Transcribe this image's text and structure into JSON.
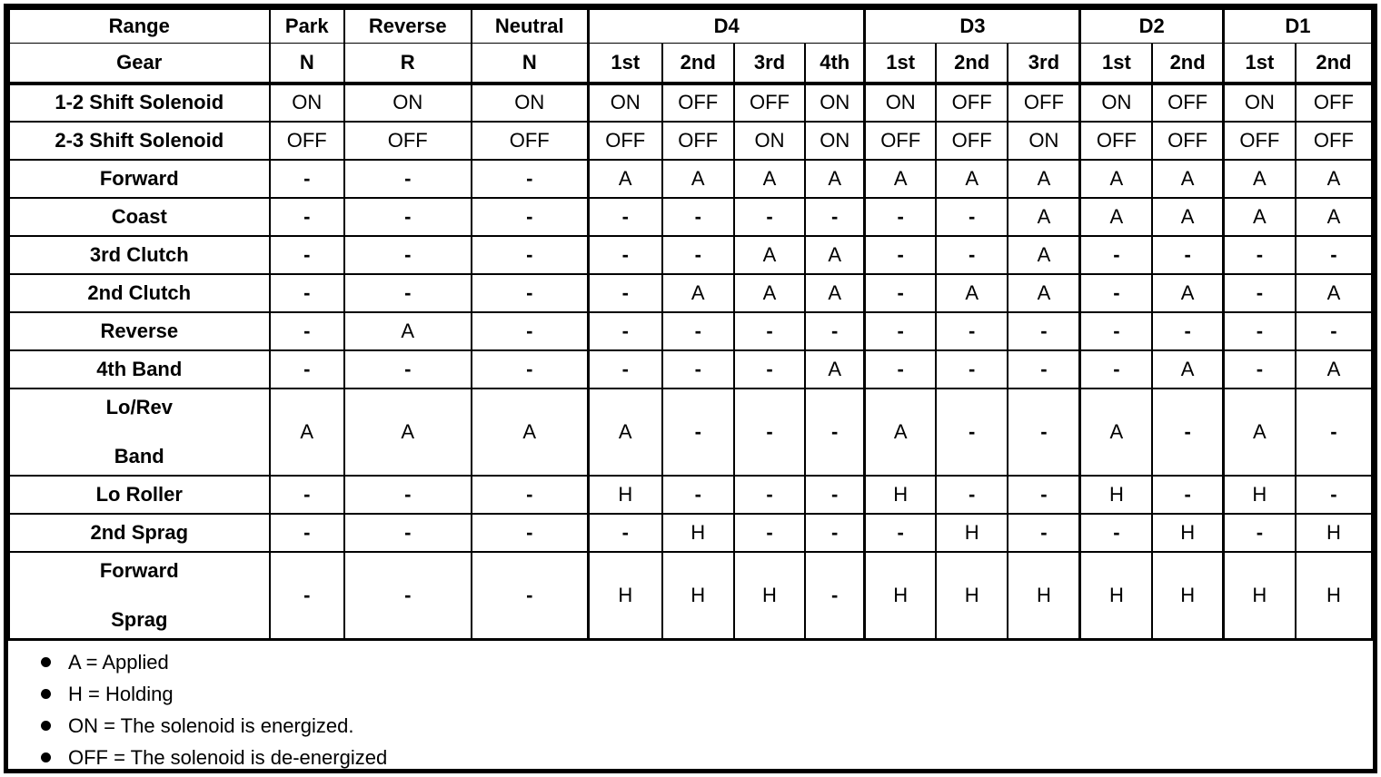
{
  "header": {
    "range_label": "Range",
    "gear_label": "Gear",
    "ranges": [
      {
        "label": "Park",
        "gears": [
          "N"
        ]
      },
      {
        "label": "Reverse",
        "gears": [
          "R"
        ]
      },
      {
        "label": "Neutral",
        "gears": [
          "N"
        ]
      },
      {
        "label": "D4",
        "gears": [
          "1st",
          "2nd",
          "3rd",
          "4th"
        ]
      },
      {
        "label": "D3",
        "gears": [
          "1st",
          "2nd",
          "3rd"
        ]
      },
      {
        "label": "D2",
        "gears": [
          "1st",
          "2nd"
        ]
      },
      {
        "label": "D1",
        "gears": [
          "1st",
          "2nd"
        ]
      }
    ]
  },
  "rows": [
    {
      "label_lines": [
        "1-2 Shift Solenoid"
      ],
      "values": [
        "ON",
        "ON",
        "ON",
        "ON",
        "OFF",
        "OFF",
        "ON",
        "ON",
        "OFF",
        "OFF",
        "ON",
        "OFF",
        "ON",
        "OFF"
      ]
    },
    {
      "label_lines": [
        "2-3 Shift Solenoid"
      ],
      "values": [
        "OFF",
        "OFF",
        "OFF",
        "OFF",
        "OFF",
        "ON",
        "ON",
        "OFF",
        "OFF",
        "ON",
        "OFF",
        "OFF",
        "OFF",
        "OFF"
      ]
    },
    {
      "label_lines": [
        "Forward"
      ],
      "values": [
        "-",
        "-",
        "-",
        "A",
        "A",
        "A",
        "A",
        "A",
        "A",
        "A",
        "A",
        "A",
        "A",
        "A"
      ]
    },
    {
      "label_lines": [
        "Coast"
      ],
      "values": [
        "-",
        "-",
        "-",
        "-",
        "-",
        "-",
        "-",
        "-",
        "-",
        "A",
        "A",
        "A",
        "A",
        "A"
      ]
    },
    {
      "label_lines": [
        "3rd Clutch"
      ],
      "values": [
        "-",
        "-",
        "-",
        "-",
        "-",
        "A",
        "A",
        "-",
        "-",
        "A",
        "-",
        "-",
        "-",
        "-"
      ]
    },
    {
      "label_lines": [
        "2nd Clutch"
      ],
      "values": [
        "-",
        "-",
        "-",
        "-",
        "A",
        "A",
        "A",
        "-",
        "A",
        "A",
        "-",
        "A",
        "-",
        "A"
      ]
    },
    {
      "label_lines": [
        "Reverse"
      ],
      "values": [
        "-",
        "A",
        "-",
        "-",
        "-",
        "-",
        "-",
        "-",
        "-",
        "-",
        "-",
        "-",
        "-",
        "-"
      ]
    },
    {
      "label_lines": [
        "4th Band"
      ],
      "values": [
        "-",
        "-",
        "-",
        "-",
        "-",
        "-",
        "A",
        "-",
        "-",
        "-",
        "-",
        "A",
        "-",
        "A"
      ]
    },
    {
      "label_lines": [
        "Lo/Rev",
        "Band"
      ],
      "values": [
        "A",
        "A",
        "A",
        "A",
        "-",
        "-",
        "-",
        "A",
        "-",
        "-",
        "A",
        "-",
        "A",
        "-"
      ]
    },
    {
      "label_lines": [
        "Lo Roller"
      ],
      "values": [
        "-",
        "-",
        "-",
        "H",
        "-",
        "-",
        "-",
        "H",
        "-",
        "-",
        "H",
        "-",
        "H",
        "-"
      ]
    },
    {
      "label_lines": [
        "2nd Sprag"
      ],
      "values": [
        "-",
        "-",
        "-",
        "-",
        "H",
        "-",
        "-",
        "-",
        "H",
        "-",
        "-",
        "H",
        "-",
        "H"
      ]
    },
    {
      "label_lines": [
        "Forward",
        "Sprag"
      ],
      "values": [
        "-",
        "-",
        "-",
        "H",
        "H",
        "H",
        "-",
        "H",
        "H",
        "H",
        "H",
        "H",
        "H",
        "H"
      ]
    }
  ],
  "legend": {
    "items": [
      "A = Applied",
      "H = Holding",
      "ON = The solenoid is energized.",
      "OFF = The solenoid is de-energized"
    ]
  },
  "colors": {
    "ink": "#000000",
    "paper": "#ffffff"
  }
}
